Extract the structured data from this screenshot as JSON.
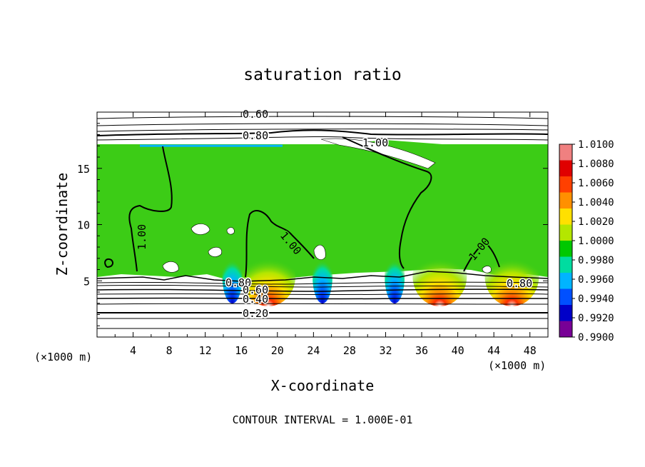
{
  "chart_data": {
    "type": "heatmap",
    "title": "saturation ratio",
    "xlabel": "X-coordinate",
    "ylabel": "Z-coordinate",
    "x_unit": "(×1000 m)",
    "x_ticks": [
      "4",
      "8",
      "12",
      "16",
      "20",
      "24",
      "28",
      "32",
      "36",
      "40",
      "44",
      "48"
    ],
    "y_ticks": [
      "5",
      "10",
      "15"
    ],
    "xlim": [
      0,
      50
    ],
    "ylim": [
      0,
      20
    ],
    "grid": false,
    "footer": "CONTOUR INTERVAL = 1.000E-01",
    "colorbar": {
      "labels": [
        "1.0100",
        "1.0080",
        "1.0060",
        "1.0040",
        "1.0020",
        "1.0000",
        "0.9980",
        "0.9960",
        "0.9940",
        "0.9920",
        "0.9900"
      ],
      "min": 0.99,
      "max": 1.01,
      "colors": [
        "#f08080",
        "#e00000",
        "#ff4000",
        "#ff9000",
        "#ffe000",
        "#b4e600",
        "#00c800",
        "#00dca0",
        "#00b4ff",
        "#0050ff",
        "#0000c8",
        "#780096"
      ]
    },
    "contour_labels": [
      "0.60",
      "0.80",
      "1.00",
      "1.00",
      "1.00",
      "1.00",
      "0.80",
      "0.60",
      "0.40",
      "0.20",
      "0.80"
    ],
    "contour_levels": [
      0.2,
      0.4,
      0.6,
      0.8,
      1.0
    ],
    "field": {
      "background": "#3ccc16",
      "cloud_top_z": 17.1,
      "cloud_base_z": 5.4,
      "warm_plumes_x": [
        19,
        38,
        46
      ],
      "dry_bands_x": [
        15,
        25,
        33
      ]
    }
  }
}
